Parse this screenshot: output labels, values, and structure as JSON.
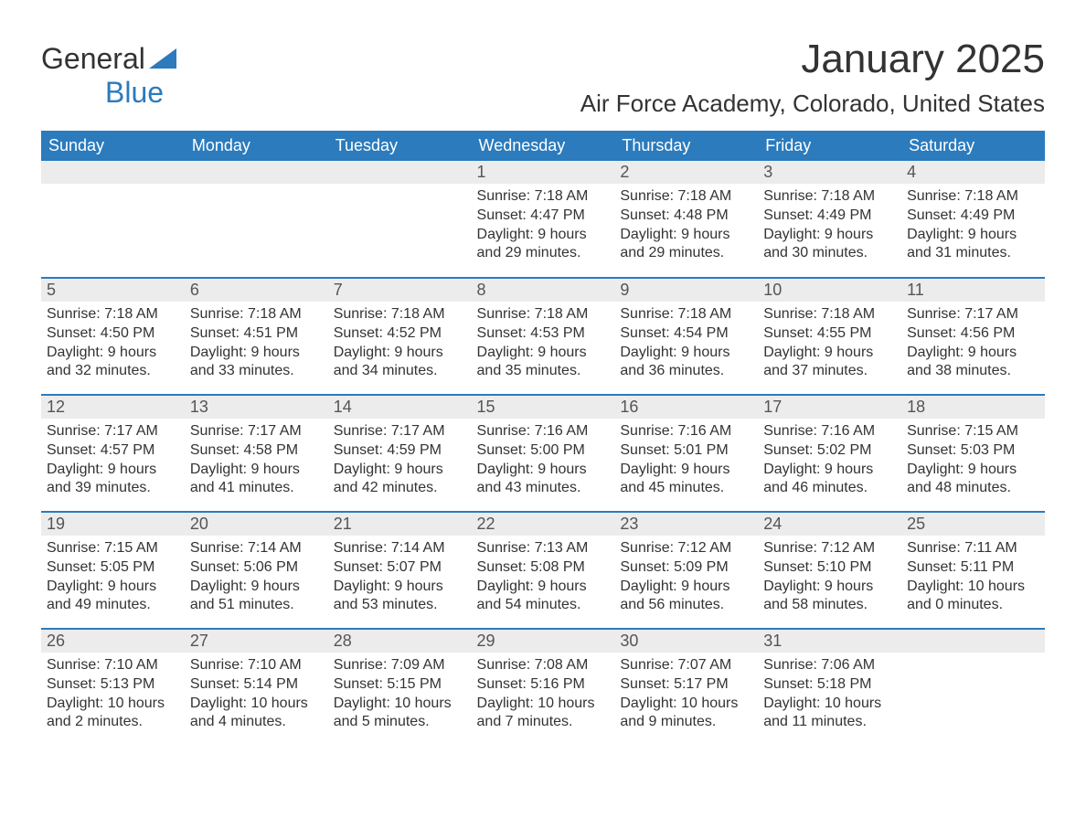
{
  "logo": {
    "text1": "General",
    "text2": "Blue"
  },
  "title": "January 2025",
  "location": "Air Force Academy, Colorado, United States",
  "colors": {
    "header_bg": "#2b7bbd",
    "header_text": "#ffffff",
    "daynum_bg": "#ececec",
    "text": "#333333",
    "page_bg": "#ffffff"
  },
  "fonts": {
    "title_size": 44,
    "location_size": 26,
    "th_size": 18,
    "body_size": 16
  },
  "weekdays": [
    "Sunday",
    "Monday",
    "Tuesday",
    "Wednesday",
    "Thursday",
    "Friday",
    "Saturday"
  ],
  "weeks": [
    [
      null,
      null,
      null,
      {
        "n": "1",
        "sr": "Sunrise: 7:18 AM",
        "ss": "Sunset: 4:47 PM",
        "d1": "Daylight: 9 hours",
        "d2": "and 29 minutes."
      },
      {
        "n": "2",
        "sr": "Sunrise: 7:18 AM",
        "ss": "Sunset: 4:48 PM",
        "d1": "Daylight: 9 hours",
        "d2": "and 29 minutes."
      },
      {
        "n": "3",
        "sr": "Sunrise: 7:18 AM",
        "ss": "Sunset: 4:49 PM",
        "d1": "Daylight: 9 hours",
        "d2": "and 30 minutes."
      },
      {
        "n": "4",
        "sr": "Sunrise: 7:18 AM",
        "ss": "Sunset: 4:49 PM",
        "d1": "Daylight: 9 hours",
        "d2": "and 31 minutes."
      }
    ],
    [
      {
        "n": "5",
        "sr": "Sunrise: 7:18 AM",
        "ss": "Sunset: 4:50 PM",
        "d1": "Daylight: 9 hours",
        "d2": "and 32 minutes."
      },
      {
        "n": "6",
        "sr": "Sunrise: 7:18 AM",
        "ss": "Sunset: 4:51 PM",
        "d1": "Daylight: 9 hours",
        "d2": "and 33 minutes."
      },
      {
        "n": "7",
        "sr": "Sunrise: 7:18 AM",
        "ss": "Sunset: 4:52 PM",
        "d1": "Daylight: 9 hours",
        "d2": "and 34 minutes."
      },
      {
        "n": "8",
        "sr": "Sunrise: 7:18 AM",
        "ss": "Sunset: 4:53 PM",
        "d1": "Daylight: 9 hours",
        "d2": "and 35 minutes."
      },
      {
        "n": "9",
        "sr": "Sunrise: 7:18 AM",
        "ss": "Sunset: 4:54 PM",
        "d1": "Daylight: 9 hours",
        "d2": "and 36 minutes."
      },
      {
        "n": "10",
        "sr": "Sunrise: 7:18 AM",
        "ss": "Sunset: 4:55 PM",
        "d1": "Daylight: 9 hours",
        "d2": "and 37 minutes."
      },
      {
        "n": "11",
        "sr": "Sunrise: 7:17 AM",
        "ss": "Sunset: 4:56 PM",
        "d1": "Daylight: 9 hours",
        "d2": "and 38 minutes."
      }
    ],
    [
      {
        "n": "12",
        "sr": "Sunrise: 7:17 AM",
        "ss": "Sunset: 4:57 PM",
        "d1": "Daylight: 9 hours",
        "d2": "and 39 minutes."
      },
      {
        "n": "13",
        "sr": "Sunrise: 7:17 AM",
        "ss": "Sunset: 4:58 PM",
        "d1": "Daylight: 9 hours",
        "d2": "and 41 minutes."
      },
      {
        "n": "14",
        "sr": "Sunrise: 7:17 AM",
        "ss": "Sunset: 4:59 PM",
        "d1": "Daylight: 9 hours",
        "d2": "and 42 minutes."
      },
      {
        "n": "15",
        "sr": "Sunrise: 7:16 AM",
        "ss": "Sunset: 5:00 PM",
        "d1": "Daylight: 9 hours",
        "d2": "and 43 minutes."
      },
      {
        "n": "16",
        "sr": "Sunrise: 7:16 AM",
        "ss": "Sunset: 5:01 PM",
        "d1": "Daylight: 9 hours",
        "d2": "and 45 minutes."
      },
      {
        "n": "17",
        "sr": "Sunrise: 7:16 AM",
        "ss": "Sunset: 5:02 PM",
        "d1": "Daylight: 9 hours",
        "d2": "and 46 minutes."
      },
      {
        "n": "18",
        "sr": "Sunrise: 7:15 AM",
        "ss": "Sunset: 5:03 PM",
        "d1": "Daylight: 9 hours",
        "d2": "and 48 minutes."
      }
    ],
    [
      {
        "n": "19",
        "sr": "Sunrise: 7:15 AM",
        "ss": "Sunset: 5:05 PM",
        "d1": "Daylight: 9 hours",
        "d2": "and 49 minutes."
      },
      {
        "n": "20",
        "sr": "Sunrise: 7:14 AM",
        "ss": "Sunset: 5:06 PM",
        "d1": "Daylight: 9 hours",
        "d2": "and 51 minutes."
      },
      {
        "n": "21",
        "sr": "Sunrise: 7:14 AM",
        "ss": "Sunset: 5:07 PM",
        "d1": "Daylight: 9 hours",
        "d2": "and 53 minutes."
      },
      {
        "n": "22",
        "sr": "Sunrise: 7:13 AM",
        "ss": "Sunset: 5:08 PM",
        "d1": "Daylight: 9 hours",
        "d2": "and 54 minutes."
      },
      {
        "n": "23",
        "sr": "Sunrise: 7:12 AM",
        "ss": "Sunset: 5:09 PM",
        "d1": "Daylight: 9 hours",
        "d2": "and 56 minutes."
      },
      {
        "n": "24",
        "sr": "Sunrise: 7:12 AM",
        "ss": "Sunset: 5:10 PM",
        "d1": "Daylight: 9 hours",
        "d2": "and 58 minutes."
      },
      {
        "n": "25",
        "sr": "Sunrise: 7:11 AM",
        "ss": "Sunset: 5:11 PM",
        "d1": "Daylight: 10 hours",
        "d2": "and 0 minutes."
      }
    ],
    [
      {
        "n": "26",
        "sr": "Sunrise: 7:10 AM",
        "ss": "Sunset: 5:13 PM",
        "d1": "Daylight: 10 hours",
        "d2": "and 2 minutes."
      },
      {
        "n": "27",
        "sr": "Sunrise: 7:10 AM",
        "ss": "Sunset: 5:14 PM",
        "d1": "Daylight: 10 hours",
        "d2": "and 4 minutes."
      },
      {
        "n": "28",
        "sr": "Sunrise: 7:09 AM",
        "ss": "Sunset: 5:15 PM",
        "d1": "Daylight: 10 hours",
        "d2": "and 5 minutes."
      },
      {
        "n": "29",
        "sr": "Sunrise: 7:08 AM",
        "ss": "Sunset: 5:16 PM",
        "d1": "Daylight: 10 hours",
        "d2": "and 7 minutes."
      },
      {
        "n": "30",
        "sr": "Sunrise: 7:07 AM",
        "ss": "Sunset: 5:17 PM",
        "d1": "Daylight: 10 hours",
        "d2": "and 9 minutes."
      },
      {
        "n": "31",
        "sr": "Sunrise: 7:06 AM",
        "ss": "Sunset: 5:18 PM",
        "d1": "Daylight: 10 hours",
        "d2": "and 11 minutes."
      },
      null
    ]
  ]
}
